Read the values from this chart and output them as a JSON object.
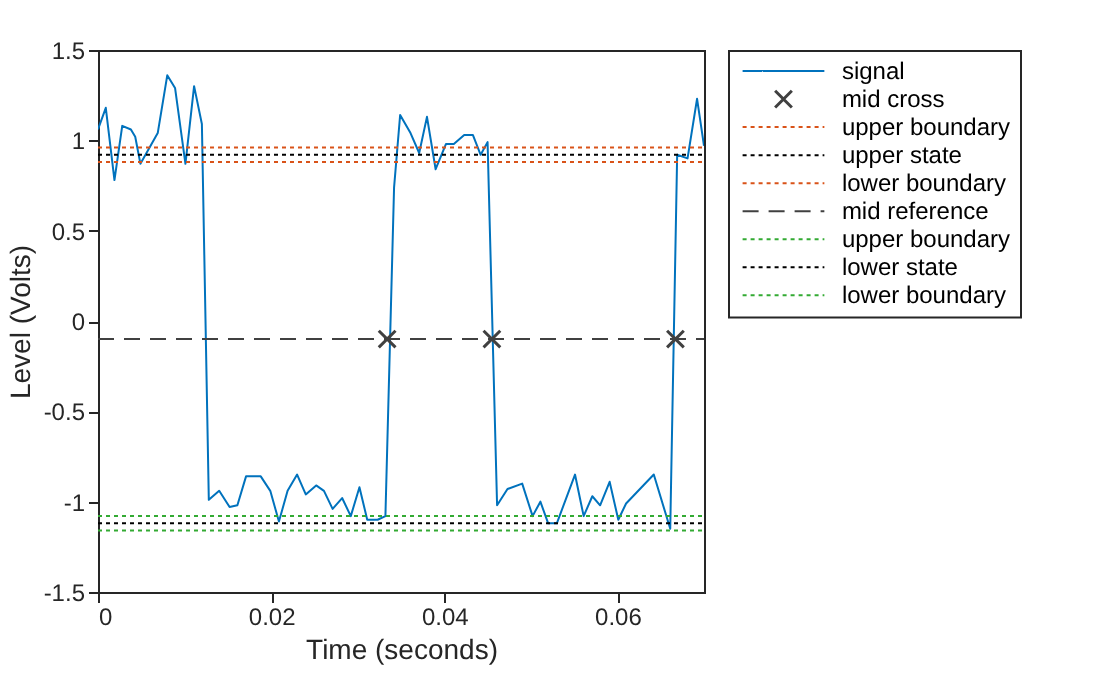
{
  "chart_data": {
    "type": "line",
    "xlabel": "Time (seconds)",
    "ylabel": "Level (Volts)",
    "xlim": [
      0,
      0.07
    ],
    "xticks": [
      0,
      0.02,
      0.04,
      0.06
    ],
    "ylim": [
      -1.5,
      1.5
    ],
    "yticks": [
      -1.5,
      -1,
      -0.5,
      0,
      0.5,
      1,
      1.5
    ],
    "grid": false,
    "legend": "right",
    "series": [
      {
        "name": "signal",
        "type": "line",
        "color": "#0072bd",
        "line_style": "solid",
        "marker": "none",
        "x": [
          0,
          0.0009,
          0.0019,
          0.0028,
          0.0038,
          0.0043,
          0.0049,
          0.0069,
          0.008,
          0.0089,
          0.0101,
          0.0111,
          0.012,
          0.0128,
          0.014,
          0.0152,
          0.0161,
          0.0171,
          0.0188,
          0.0199,
          0.0209,
          0.0219,
          0.023,
          0.024,
          0.0252,
          0.0261,
          0.0271,
          0.0282,
          0.0292,
          0.0302,
          0.0311,
          0.0323,
          0.0332,
          0.0342,
          0.0349,
          0.0361,
          0.0371,
          0.038,
          0.039,
          0.0402,
          0.0411,
          0.0423,
          0.0433,
          0.0442,
          0.045,
          0.0461,
          0.0473,
          0.049,
          0.0502,
          0.0511,
          0.052,
          0.053,
          0.0551,
          0.0561,
          0.0571,
          0.058,
          0.0591,
          0.0601,
          0.061,
          0.0642,
          0.0661,
          0.0669,
          0.0681,
          0.0692,
          0.07
        ],
        "values": [
          1.06,
          1.18,
          0.78,
          1.08,
          1.06,
          1.02,
          0.87,
          1.04,
          1.36,
          1.29,
          0.87,
          1.3,
          1.09,
          -0.99,
          -0.94,
          -1.03,
          -1.02,
          -0.86,
          -0.86,
          -0.94,
          -1.11,
          -0.94,
          -0.85,
          -0.96,
          -0.91,
          -0.94,
          -1.04,
          -0.98,
          -1.08,
          -0.92,
          -1.1,
          -1.1,
          -1.08,
          0.74,
          1.14,
          1.04,
          0.93,
          1.13,
          0.84,
          0.98,
          0.98,
          1.03,
          1.03,
          0.92,
          0.99,
          -1.02,
          -0.93,
          -0.9,
          -1.08,
          -1.0,
          -1.12,
          -1.12,
          -0.85,
          -1.08,
          -0.97,
          -1.02,
          -0.89,
          -1.1,
          -1.01,
          -0.85,
          -1.15,
          0.92,
          0.9,
          1.23,
          0.97
        ]
      },
      {
        "name": "mid cross",
        "type": "scatter",
        "color": "#404040",
        "marker": "cross",
        "x": [
          0.0334,
          0.0455,
          0.0667
        ],
        "values": [
          -0.1,
          -0.1,
          -0.1
        ]
      },
      {
        "name": "upper boundary",
        "type": "line",
        "color": "#d95319",
        "line_style": "dotted",
        "marker": "none",
        "x": [
          0,
          0.07
        ],
        "values": [
          0.96,
          0.96
        ]
      },
      {
        "name": "upper state",
        "type": "line",
        "color": "#000000",
        "line_style": "dotted",
        "marker": "none",
        "x": [
          0,
          0.07
        ],
        "values": [
          0.92,
          0.92
        ]
      },
      {
        "name": "lower boundary",
        "type": "line",
        "color": "#d95319",
        "line_style": "dotted",
        "marker": "none",
        "x": [
          0,
          0.07
        ],
        "values": [
          0.88,
          0.88
        ]
      },
      {
        "name": "mid reference",
        "type": "line",
        "color": "#404040",
        "line_style": "dashed",
        "marker": "none",
        "x": [
          0,
          0.07
        ],
        "values": [
          -0.1,
          -0.1
        ]
      },
      {
        "name": "upper boundary",
        "type": "line",
        "color": "#33aa33",
        "line_style": "dotted",
        "marker": "none",
        "x": [
          0,
          0.07
        ],
        "values": [
          -1.08,
          -1.08
        ]
      },
      {
        "name": "lower state",
        "type": "line",
        "color": "#000000",
        "line_style": "dotted",
        "marker": "none",
        "x": [
          0,
          0.07
        ],
        "values": [
          -1.12,
          -1.12
        ]
      },
      {
        "name": "lower boundary",
        "type": "line",
        "color": "#33aa33",
        "line_style": "dotted",
        "marker": "none",
        "x": [
          0,
          0.07
        ],
        "values": [
          -1.16,
          -1.16
        ]
      }
    ]
  }
}
